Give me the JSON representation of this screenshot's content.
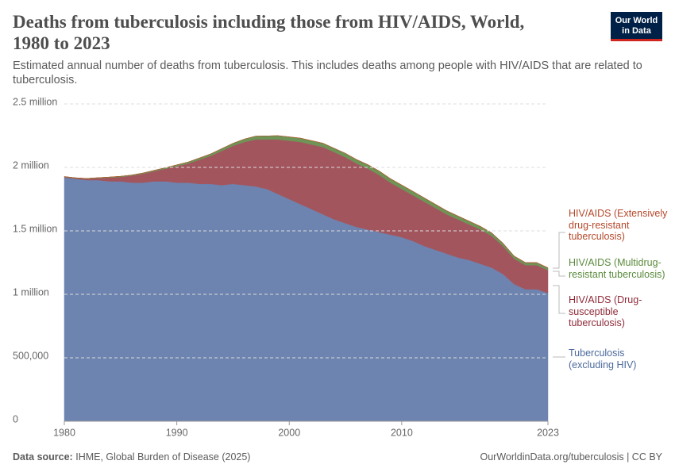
{
  "chart_data": {
    "type": "stacked-area",
    "title": "Deaths from tuberculosis including those from HIV/AIDS, World, 1980 to 2023",
    "subtitle": "Estimated annual number of deaths from tuberculosis. This includes deaths among people with HIV/AIDS that are related to tuberculosis.",
    "logo": [
      "Our World",
      "in Data"
    ],
    "source_label": "Data source:",
    "source": "IHME, Global Burden of Disease (2025)",
    "credit": "OurWorldinData.org/tuberculosis | CC BY",
    "x": [
      1980,
      1981,
      1982,
      1983,
      1984,
      1985,
      1986,
      1987,
      1988,
      1989,
      1990,
      1991,
      1992,
      1993,
      1994,
      1995,
      1996,
      1997,
      1998,
      1999,
      2000,
      2001,
      2002,
      2003,
      2004,
      2005,
      2006,
      2007,
      2008,
      2009,
      2010,
      2011,
      2012,
      2013,
      2014,
      2015,
      2016,
      2017,
      2018,
      2019,
      2020,
      2021,
      2022,
      2023
    ],
    "xlim": [
      1980,
      2023
    ],
    "xticks": [
      1980,
      1990,
      2000,
      2010,
      2023
    ],
    "ylim": [
      0,
      2500000
    ],
    "yticks": [
      0,
      {
        "value": 500000,
        "label": "500,000"
      },
      {
        "value": 1000000,
        "label": "1 million"
      },
      {
        "value": 1500000,
        "label": "1.5 million"
      },
      {
        "value": 2000000,
        "label": "2 million"
      },
      {
        "value": 2500000,
        "label": "2.5 million"
      }
    ],
    "grid": true,
    "series": [
      {
        "name": "Tuberculosis (excluding HIV)",
        "color": "#6d84b0",
        "label_color": "#4c6a9c",
        "values": [
          1920000,
          1910000,
          1900000,
          1900000,
          1890000,
          1890000,
          1880000,
          1880000,
          1890000,
          1890000,
          1880000,
          1880000,
          1870000,
          1870000,
          1860000,
          1870000,
          1860000,
          1850000,
          1830000,
          1790000,
          1750000,
          1710000,
          1670000,
          1630000,
          1590000,
          1560000,
          1530000,
          1510000,
          1490000,
          1470000,
          1450000,
          1420000,
          1380000,
          1350000,
          1320000,
          1290000,
          1270000,
          1240000,
          1210000,
          1160000,
          1080000,
          1040000,
          1040000,
          1010000
        ]
      },
      {
        "name": "HIV/AIDS (Drug-susceptible tuberculosis)",
        "color": "#a3555e",
        "label_color": "#8f2a38",
        "values": [
          5000,
          5000,
          10000,
          15000,
          30000,
          35000,
          55000,
          70000,
          80000,
          100000,
          130000,
          150000,
          190000,
          220000,
          270000,
          300000,
          340000,
          370000,
          390000,
          430000,
          460000,
          490000,
          510000,
          530000,
          530000,
          520000,
          500000,
          480000,
          450000,
          410000,
          380000,
          360000,
          350000,
          330000,
          310000,
          300000,
          280000,
          270000,
          250000,
          220000,
          200000,
          190000,
          190000,
          180000
        ]
      },
      {
        "name": "HIV/AIDS (Multidrug-resistant tuberculosis)",
        "color": "#6e9456",
        "label_color": "#5a8a3c",
        "values": [
          3000,
          3000,
          3000,
          4000,
          4000,
          5000,
          5000,
          6000,
          7000,
          8000,
          10000,
          12000,
          14000,
          16000,
          18000,
          20000,
          23000,
          26000,
          28000,
          30000,
          30000,
          30000,
          30000,
          30000,
          30000,
          30000,
          30000,
          30000,
          30000,
          30000,
          30000,
          30000,
          29000,
          28000,
          27000,
          26000,
          25000,
          24000,
          23000,
          22000,
          20000,
          19000,
          19000,
          18000
        ]
      },
      {
        "name": "HIV/AIDS (Extensively drug-resistant tuberculosis)",
        "color": "#b5552d",
        "label_color": "#b5482a",
        "values": [
          0,
          0,
          0,
          0,
          0,
          0,
          0,
          0,
          0,
          0,
          0,
          0,
          0,
          0,
          0,
          0,
          0,
          0,
          0,
          0,
          1000,
          1000,
          1000,
          1000,
          1000,
          1000,
          2000,
          2000,
          2000,
          2000,
          2000,
          2000,
          2000,
          2000,
          2000,
          2000,
          2000,
          2000,
          2000,
          2000,
          2000,
          2000,
          2000,
          2000
        ]
      }
    ]
  }
}
